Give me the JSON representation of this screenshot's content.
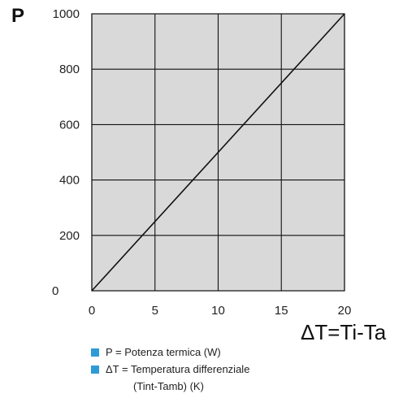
{
  "chart_data": {
    "type": "line",
    "title": "",
    "ylabel": "P",
    "xlabel": "ΔT=Ti-Ta",
    "x": [
      0,
      20
    ],
    "series": [
      {
        "values": [
          0,
          1000
        ]
      }
    ],
    "xlim": [
      0,
      20
    ],
    "ylim": [
      0,
      1000
    ],
    "xticks": [
      "0",
      "5",
      "10",
      "15",
      "20"
    ],
    "yticks": [
      "0",
      "200",
      "400",
      "600",
      "800",
      "1000"
    ],
    "xtick_values": [
      0,
      5,
      10,
      15,
      20
    ],
    "ytick_values": [
      0,
      200,
      400,
      600,
      800,
      1000
    ],
    "grid": true,
    "plot_background": "#d9d9d9",
    "line_color": "#111111"
  },
  "legend": {
    "swatch_color": "#2e9bd6",
    "items": [
      "P = Potenza termica (W)",
      "ΔT = Temperatura differenziale"
    ],
    "item2_continuation": "(Tint-Tamb) (K)"
  }
}
